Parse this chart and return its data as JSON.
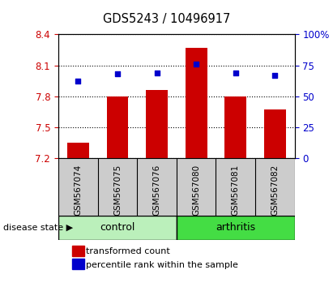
{
  "title": "GDS5243 / 10496917",
  "samples": [
    "GSM567074",
    "GSM567075",
    "GSM567076",
    "GSM567080",
    "GSM567081",
    "GSM567082"
  ],
  "bar_values": [
    7.35,
    7.8,
    7.86,
    8.27,
    7.8,
    7.67
  ],
  "dot_values": [
    62,
    68,
    69,
    76,
    69,
    67
  ],
  "ylim_left": [
    7.2,
    8.4
  ],
  "ylim_right": [
    0,
    100
  ],
  "bar_color": "#cc0000",
  "dot_color": "#0000cc",
  "yticks_left": [
    7.2,
    7.5,
    7.8,
    8.1,
    8.4
  ],
  "yticks_right": [
    0,
    25,
    50,
    75,
    100
  ],
  "control_color": "#bbf0bb",
  "arthritis_color": "#44dd44",
  "label_box_color": "#cccccc",
  "disease_state_label": "disease state",
  "legend_bar_label": "transformed count",
  "legend_dot_label": "percentile rank within the sample",
  "bar_color_tick": "#cc0000",
  "dot_color_tick": "#0000cc",
  "bar_width": 0.55
}
